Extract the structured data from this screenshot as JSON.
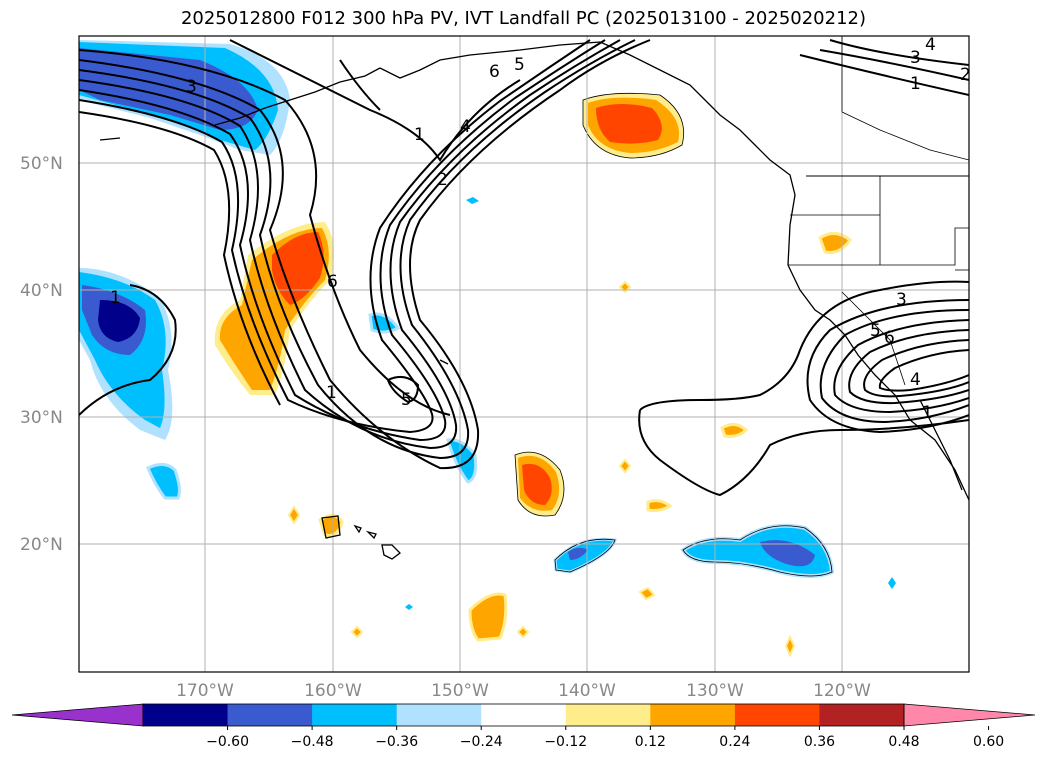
{
  "title": "2025012800 F012 300 hPa PV, IVT Landfall PC (2025013100 - 2025020212)",
  "lat_labels": [
    "50°N",
    "40°N",
    "30°N",
    "20°N"
  ],
  "lon_labels": [
    "170°W",
    "160°W",
    "150°W",
    "140°W",
    "130°W",
    "120°W"
  ],
  "colorbar": {
    "colors": [
      "#9932cc",
      "#00008b",
      "#3a5bd0",
      "#00bfff",
      "#b0e2ff",
      "#ffffff",
      "#ffec8b",
      "#ffa500",
      "#ff4500",
      "#b22222",
      "#ff88aa"
    ],
    "ticks": [
      "−0.60",
      "−0.48",
      "−0.36",
      "−0.24",
      "−0.12",
      "0.12",
      "0.24",
      "0.36",
      "0.48",
      "0.60"
    ]
  },
  "contour_labels": [
    "3",
    "1",
    "6",
    "5",
    "1",
    "2",
    "4",
    "1",
    "6",
    "5",
    "3",
    "1",
    "4",
    "2",
    "3",
    "5",
    "6",
    "4",
    "1"
  ]
}
